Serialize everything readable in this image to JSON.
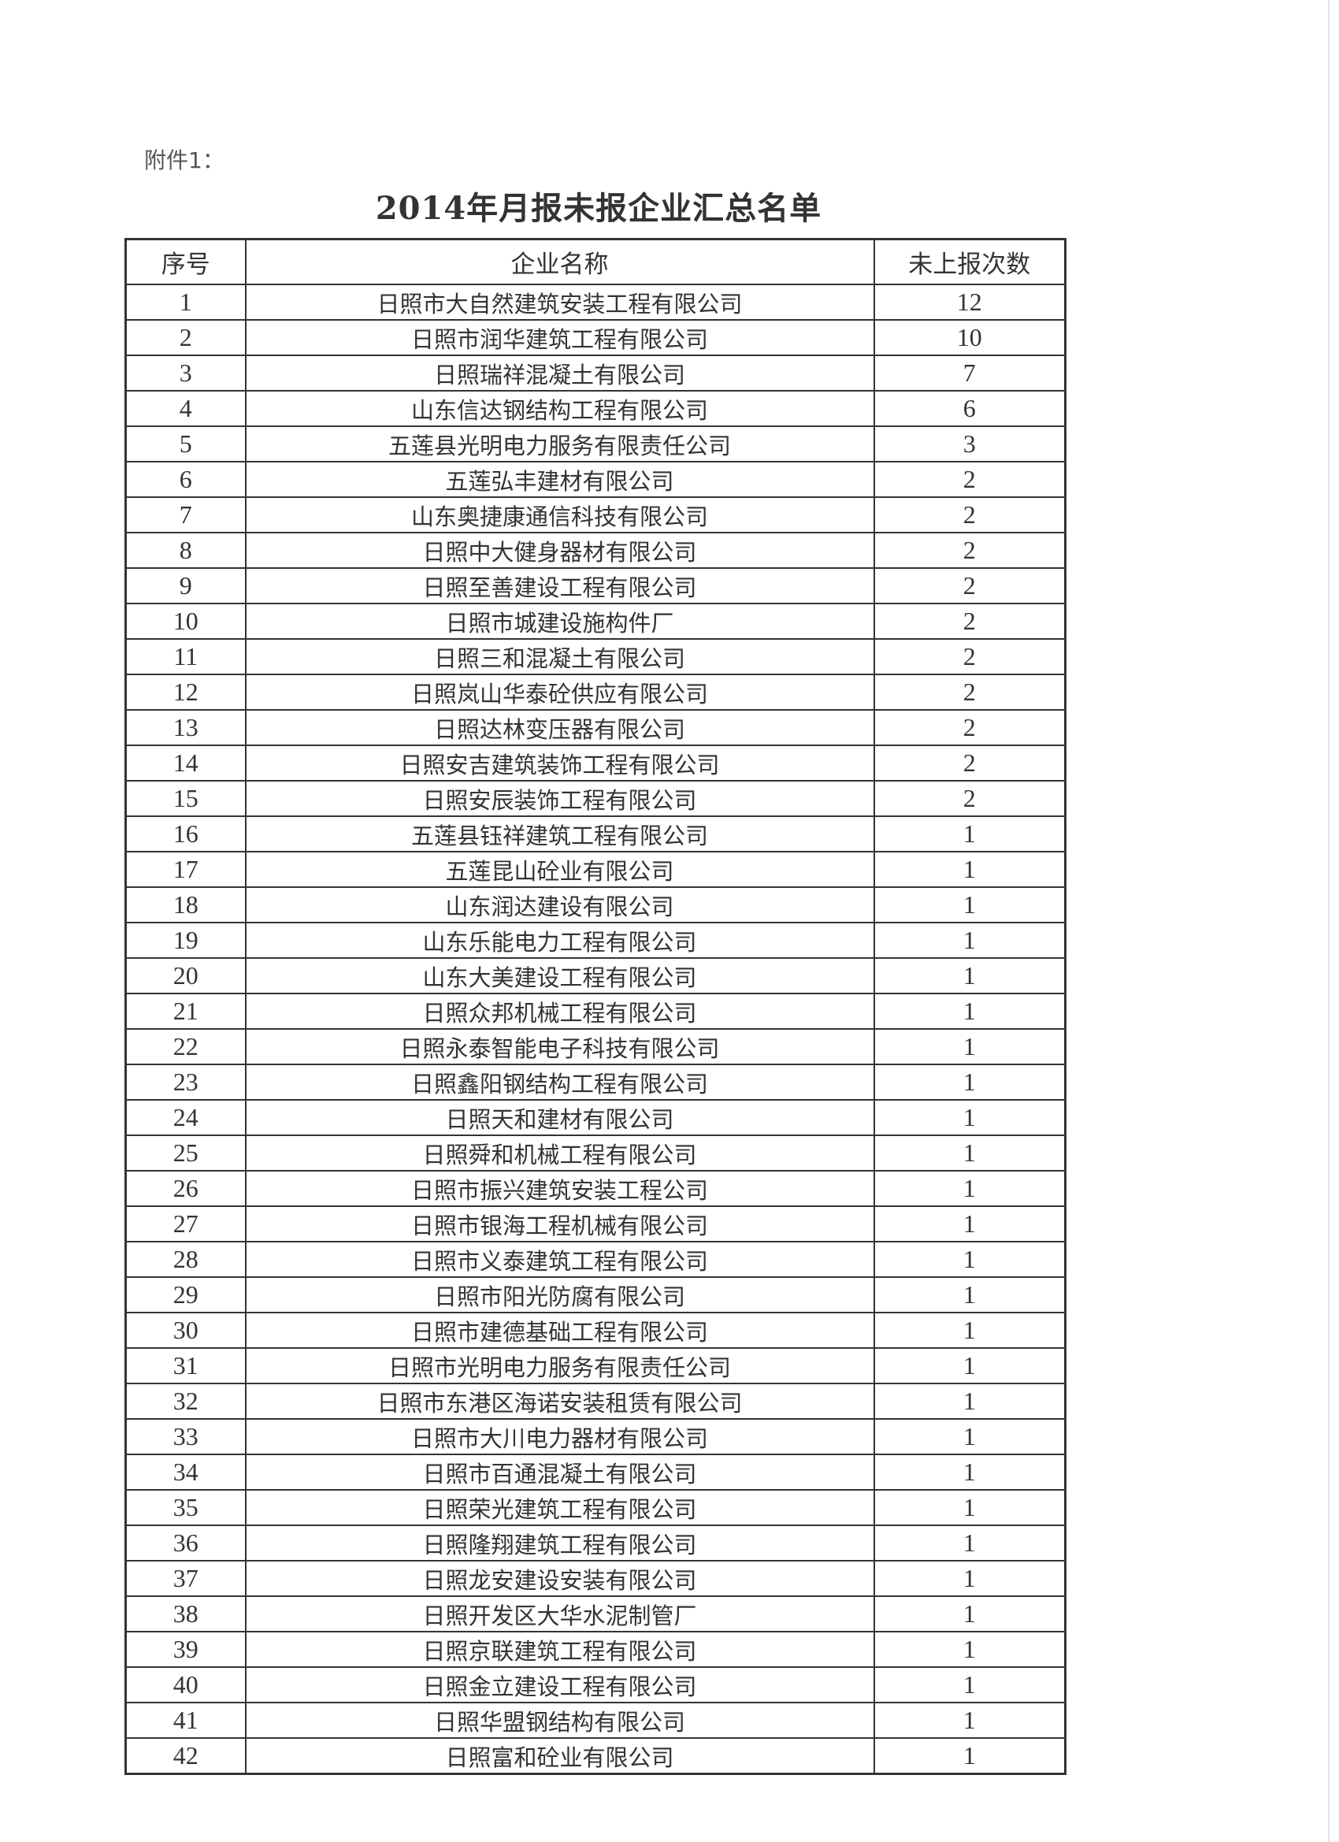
{
  "attachment_label": "附件1：",
  "title": "2014年月报未报企业汇总名单",
  "table": {
    "headers": [
      "序号",
      "企业名称",
      "未上报次数"
    ],
    "rows": [
      [
        "1",
        "日照市大自然建筑安装工程有限公司",
        "12"
      ],
      [
        "2",
        "日照市润华建筑工程有限公司",
        "10"
      ],
      [
        "3",
        "日照瑞祥混凝土有限公司",
        "7"
      ],
      [
        "4",
        "山东信达钢结构工程有限公司",
        "6"
      ],
      [
        "5",
        "五莲县光明电力服务有限责任公司",
        "3"
      ],
      [
        "6",
        "五莲弘丰建材有限公司",
        "2"
      ],
      [
        "7",
        "山东奥捷康通信科技有限公司",
        "2"
      ],
      [
        "8",
        "日照中大健身器材有限公司",
        "2"
      ],
      [
        "9",
        "日照至善建设工程有限公司",
        "2"
      ],
      [
        "10",
        "日照市城建设施构件厂",
        "2"
      ],
      [
        "11",
        "日照三和混凝土有限公司",
        "2"
      ],
      [
        "12",
        "日照岚山华泰砼供应有限公司",
        "2"
      ],
      [
        "13",
        "日照达林变压器有限公司",
        "2"
      ],
      [
        "14",
        "日照安吉建筑装饰工程有限公司",
        "2"
      ],
      [
        "15",
        "日照安辰装饰工程有限公司",
        "2"
      ],
      [
        "16",
        "五莲县钰祥建筑工程有限公司",
        "1"
      ],
      [
        "17",
        "五莲昆山砼业有限公司",
        "1"
      ],
      [
        "18",
        "山东润达建设有限公司",
        "1"
      ],
      [
        "19",
        "山东乐能电力工程有限公司",
        "1"
      ],
      [
        "20",
        "山东大美建设工程有限公司",
        "1"
      ],
      [
        "21",
        "日照众邦机械工程有限公司",
        "1"
      ],
      [
        "22",
        "日照永泰智能电子科技有限公司",
        "1"
      ],
      [
        "23",
        "日照鑫阳钢结构工程有限公司",
        "1"
      ],
      [
        "24",
        "日照天和建材有限公司",
        "1"
      ],
      [
        "25",
        "日照舜和机械工程有限公司",
        "1"
      ],
      [
        "26",
        "日照市振兴建筑安装工程公司",
        "1"
      ],
      [
        "27",
        "日照市银海工程机械有限公司",
        "1"
      ],
      [
        "28",
        "日照市义泰建筑工程有限公司",
        "1"
      ],
      [
        "29",
        "日照市阳光防腐有限公司",
        "1"
      ],
      [
        "30",
        "日照市建德基础工程有限公司",
        "1"
      ],
      [
        "31",
        "日照市光明电力服务有限责任公司",
        "1"
      ],
      [
        "32",
        "日照市东港区海诺安装租赁有限公司",
        "1"
      ],
      [
        "33",
        "日照市大川电力器材有限公司",
        "1"
      ],
      [
        "34",
        "日照市百通混凝土有限公司",
        "1"
      ],
      [
        "35",
        "日照荣光建筑工程有限公司",
        "1"
      ],
      [
        "36",
        "日照隆翔建筑工程有限公司",
        "1"
      ],
      [
        "37",
        "日照龙安建设安装有限公司",
        "1"
      ],
      [
        "38",
        "日照开发区大华水泥制管厂",
        "1"
      ],
      [
        "39",
        "日照京联建筑工程有限公司",
        "1"
      ],
      [
        "40",
        "日照金立建设工程有限公司",
        "1"
      ],
      [
        "41",
        "日照华盟钢结构有限公司",
        "1"
      ],
      [
        "42",
        "日照富和砼业有限公司",
        "1"
      ]
    ]
  }
}
